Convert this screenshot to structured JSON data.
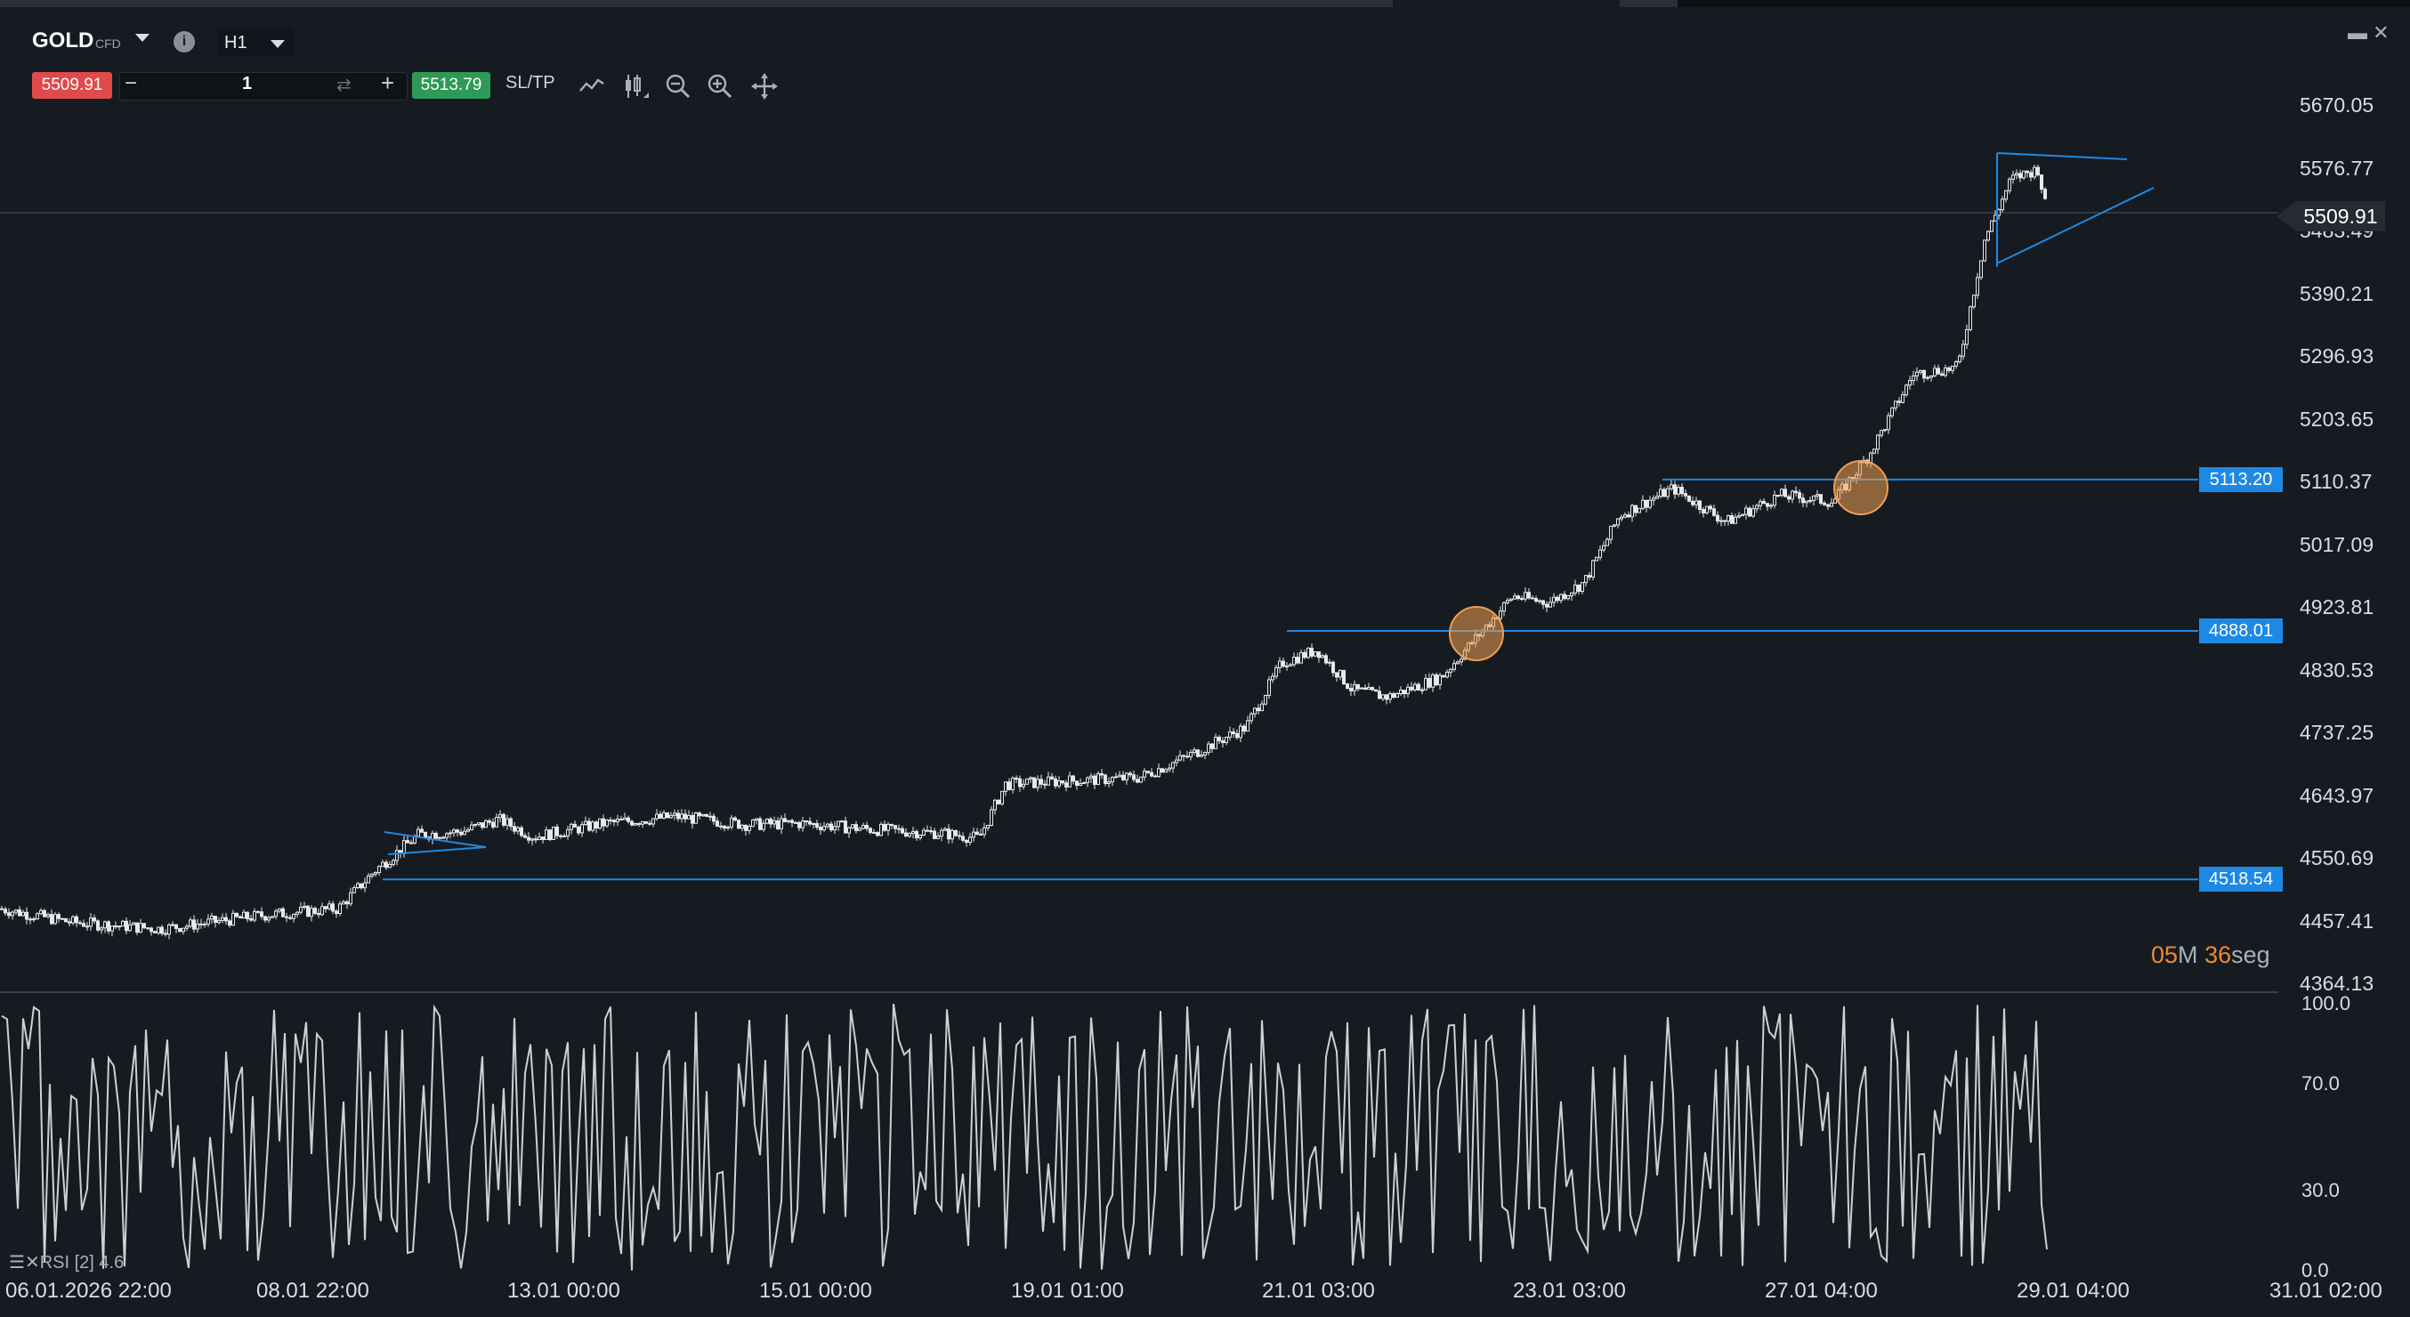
{
  "symbol": {
    "name": "GOLD",
    "type": "CFD",
    "timeframe": "H1"
  },
  "trade_bar": {
    "sell_price": "5509.91",
    "quantity": "1",
    "buy_price": "5513.79",
    "sltp_label": "SL/TP",
    "minus": "−",
    "plus": "+",
    "cycle": "⇄"
  },
  "toolbar_icons": [
    "line-chart-icon",
    "candles-icon",
    "zoom-out-icon",
    "zoom-in-icon",
    "pan-move-icon"
  ],
  "window_buttons": "▬ ✕",
  "price_axis": [
    "5670.05",
    "5576.77",
    "5483.49",
    "5390.21",
    "5296.93",
    "5203.65",
    "5110.37",
    "5017.09",
    "4923.81",
    "4830.53",
    "4737.25",
    "4643.97",
    "4550.69",
    "4457.41",
    "4364.13"
  ],
  "current_price": "5509.91",
  "levels": [
    {
      "label": "5113.20",
      "value": 5113.2
    },
    {
      "label": "4888.01",
      "value": 4888.01
    },
    {
      "label": "4518.54",
      "value": 4518.54
    }
  ],
  "countdown": {
    "min": "05",
    "min_unit": "M",
    "sec": "36",
    "sec_unit": "seg"
  },
  "rsi": {
    "label": "RSI [2] 4.6",
    "axis": [
      "100.0",
      "70.0",
      "30.0",
      "0.0"
    ]
  },
  "time_axis": [
    "06.01.2026 22:00",
    "08.01 22:00",
    "13.01 00:00",
    "15.01 00:00",
    "19.01 01:00",
    "21.01 03:00",
    "23.01 03:00",
    "27.01 04:00",
    "29.01 04:00",
    "31.01 02:00"
  ],
  "colors": {
    "background": "#161b22",
    "level_line": "#1e88e5",
    "sell": "#e04a4a",
    "buy": "#2e9a55",
    "highlight": "#f0a050",
    "candle": "#e8e8e8"
  },
  "chart_data": {
    "type": "line",
    "title": "",
    "series": [
      {
        "name": "",
        "x": [
          "06.01.2026 22:00",
          "08.01 22:00",
          "13.01 00:00",
          "15.01 00:00",
          "19.01 01:00",
          "21.01 03:00",
          "23.01 03:00",
          "27.01 04:00",
          "29.01 04:00"
        ],
        "values": [
          4475,
          4470,
          4590,
          4585,
          4655,
          4862,
          4960,
          5095,
          5560
        ]
      }
    ],
    "price_close_path": [
      [
        0,
        4475
      ],
      [
        80,
        4455
      ],
      [
        180,
        4445
      ],
      [
        300,
        4466
      ],
      [
        380,
        4475
      ],
      [
        420,
        4530
      ],
      [
        470,
        4585
      ],
      [
        520,
        4590
      ],
      [
        560,
        4608
      ],
      [
        600,
        4582
      ],
      [
        680,
        4602
      ],
      [
        760,
        4612
      ],
      [
        840,
        4600
      ],
      [
        900,
        4602
      ],
      [
        980,
        4593
      ],
      [
        1060,
        4587
      ],
      [
        1100,
        4580
      ],
      [
        1130,
        4660
      ],
      [
        1200,
        4665
      ],
      [
        1280,
        4670
      ],
      [
        1340,
        4705
      ],
      [
        1400,
        4745
      ],
      [
        1440,
        4840
      ],
      [
        1480,
        4860
      ],
      [
        1520,
        4800
      ],
      [
        1560,
        4790
      ],
      [
        1620,
        4820
      ],
      [
        1660,
        4880
      ],
      [
        1700,
        4940
      ],
      [
        1740,
        4930
      ],
      [
        1780,
        4960
      ],
      [
        1820,
        5060
      ],
      [
        1880,
        5100
      ],
      [
        1940,
        5050
      ],
      [
        2000,
        5090
      ],
      [
        2060,
        5080
      ],
      [
        2100,
        5150
      ],
      [
        2150,
        5270
      ],
      [
        2200,
        5280
      ],
      [
        2230,
        5470
      ],
      [
        2260,
        5560
      ],
      [
        2290,
        5575
      ],
      [
        2300,
        5509.91
      ]
    ],
    "yaxis": {
      "min": 4364.13,
      "max": 5670.05,
      "ticks": [
        5670.05,
        5576.77,
        5483.49,
        5390.21,
        5296.93,
        5203.65,
        5110.37,
        5017.09,
        4923.81,
        4830.53,
        4737.25,
        4643.97,
        4550.69,
        4457.41,
        4364.13
      ]
    },
    "rsi_axis": {
      "min": 0,
      "max": 100,
      "ticks": [
        100,
        70,
        30,
        0
      ]
    },
    "grid": false
  }
}
